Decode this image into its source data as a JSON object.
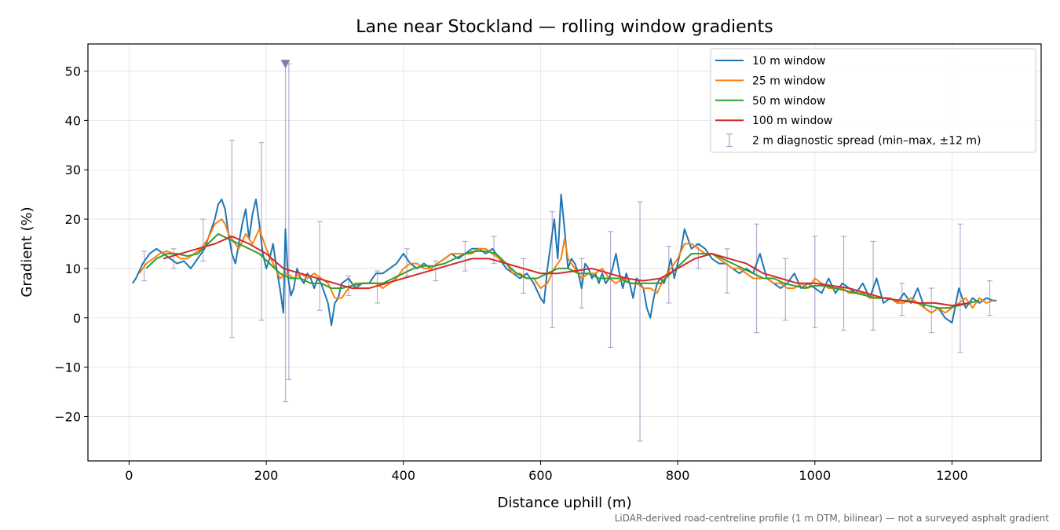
{
  "chart_data": {
    "type": "line",
    "title": "Lane near Stockland — rolling window gradients",
    "xlabel": "Distance uphill (m)",
    "ylabel": "Gradient (%)",
    "xlim": [
      -60,
      1330
    ],
    "ylim": [
      -29,
      55.5
    ],
    "xticks": [
      0,
      200,
      400,
      600,
      800,
      1000,
      1200
    ],
    "yticks": [
      -20,
      -10,
      0,
      10,
      20,
      30,
      40,
      50
    ],
    "xtick_labels": [
      "0",
      "200",
      "400",
      "600",
      "800",
      "1000",
      "1200"
    ],
    "ytick_labels": [
      "−20",
      "−10",
      "0",
      "10",
      "20",
      "30",
      "40",
      "50"
    ],
    "grid": true,
    "legend_position": "top-right",
    "footnote": "LiDAR-derived road-centreline profile (1 m DTM, bilinear) — not a surveyed asphalt gradient",
    "series": [
      {
        "name": "10 m window",
        "color": "#1f77b4",
        "x": [
          5,
          10,
          20,
          30,
          40,
          50,
          60,
          70,
          80,
          90,
          100,
          110,
          120,
          125,
          130,
          135,
          140,
          145,
          150,
          155,
          160,
          165,
          170,
          175,
          180,
          185,
          190,
          195,
          200,
          205,
          210,
          215,
          220,
          225,
          228,
          232,
          236,
          240,
          245,
          250,
          255,
          260,
          265,
          270,
          275,
          280,
          285,
          290,
          295,
          300,
          305,
          310,
          320,
          330,
          340,
          350,
          360,
          370,
          380,
          390,
          400,
          410,
          420,
          430,
          440,
          450,
          460,
          470,
          480,
          490,
          500,
          510,
          520,
          530,
          540,
          550,
          560,
          570,
          580,
          590,
          600,
          605,
          610,
          615,
          620,
          625,
          630,
          635,
          640,
          645,
          650,
          655,
          660,
          665,
          670,
          675,
          680,
          685,
          690,
          695,
          700,
          705,
          710,
          715,
          720,
          725,
          730,
          735,
          740,
          745,
          750,
          755,
          760,
          765,
          770,
          775,
          780,
          785,
          790,
          795,
          800,
          805,
          810,
          820,
          830,
          840,
          850,
          860,
          870,
          880,
          890,
          900,
          910,
          920,
          930,
          940,
          950,
          960,
          970,
          980,
          990,
          1000,
          1010,
          1020,
          1030,
          1040,
          1050,
          1060,
          1070,
          1080,
          1090,
          1100,
          1110,
          1120,
          1130,
          1140,
          1150,
          1160,
          1170,
          1180,
          1190,
          1200,
          1210,
          1220,
          1230,
          1240,
          1250,
          1260,
          1265
        ],
        "y": [
          7,
          8,
          11,
          13,
          14,
          13,
          12,
          11,
          11.5,
          10,
          12,
          14,
          18,
          20,
          23,
          24,
          22,
          17,
          13,
          11,
          15,
          19,
          22,
          16,
          21,
          24,
          19,
          13,
          10,
          12,
          15,
          10,
          6,
          1,
          18,
          8,
          4.5,
          6,
          10,
          8,
          7,
          9,
          8,
          6,
          8,
          7,
          5,
          3,
          -1.5,
          3,
          4,
          7,
          8,
          6,
          7,
          7,
          9,
          9,
          10,
          11,
          13,
          11,
          10,
          11,
          10,
          11,
          12,
          13,
          12,
          13,
          14,
          14,
          13,
          14,
          12,
          10,
          9,
          8,
          9,
          7,
          4,
          3,
          10,
          15,
          20,
          12,
          25,
          18,
          10,
          12,
          11,
          9,
          6,
          11,
          10,
          8,
          9,
          7,
          9,
          7,
          8,
          10,
          13,
          9,
          6,
          9,
          7,
          4,
          8,
          7,
          6,
          2,
          0,
          4,
          7,
          8,
          7,
          9,
          12,
          8,
          11,
          14,
          18,
          14,
          15,
          14,
          12,
          11,
          11,
          10,
          9,
          10,
          9,
          13,
          8,
          7,
          6,
          7,
          9,
          6,
          7,
          6,
          5,
          8,
          5,
          7,
          6,
          5,
          7,
          4,
          8,
          3,
          4,
          3,
          5,
          3,
          6,
          2,
          1,
          2,
          0,
          -1,
          6,
          2,
          4,
          3,
          4,
          3.5,
          3.5
        ]
      },
      {
        "name": "25 m window",
        "color": "#ff7f0e",
        "x": [
          15,
          25,
          35,
          45,
          55,
          65,
          75,
          85,
          95,
          105,
          115,
          125,
          135,
          140,
          145,
          150,
          160,
          170,
          180,
          190,
          200,
          210,
          220,
          230,
          240,
          250,
          260,
          270,
          280,
          290,
          300,
          310,
          320,
          330,
          340,
          350,
          360,
          370,
          380,
          390,
          400,
          410,
          420,
          430,
          440,
          450,
          460,
          470,
          480,
          490,
          500,
          510,
          520,
          530,
          540,
          550,
          560,
          570,
          580,
          590,
          600,
          610,
          620,
          630,
          635,
          640,
          650,
          660,
          670,
          680,
          690,
          700,
          710,
          720,
          730,
          740,
          750,
          760,
          770,
          780,
          790,
          800,
          810,
          820,
          830,
          840,
          850,
          860,
          870,
          880,
          890,
          900,
          910,
          920,
          930,
          940,
          950,
          960,
          970,
          980,
          990,
          1000,
          1010,
          1020,
          1030,
          1040,
          1050,
          1060,
          1070,
          1080,
          1090,
          1100,
          1110,
          1120,
          1130,
          1140,
          1150,
          1160,
          1170,
          1180,
          1190,
          1200,
          1210,
          1220,
          1230,
          1240,
          1250,
          1260
        ],
        "y": [
          9,
          11,
          12,
          13,
          13.5,
          13,
          12,
          12,
          13,
          14,
          16,
          19,
          20,
          19,
          17,
          16,
          14,
          17,
          15,
          18,
          14,
          11,
          8,
          9,
          8,
          9,
          8,
          9,
          8,
          7,
          4,
          4,
          6,
          7,
          7,
          7,
          7,
          6,
          7,
          8,
          10,
          11,
          11,
          10,
          10,
          11,
          12,
          13,
          13,
          13,
          13,
          14,
          14,
          13,
          12,
          11,
          9,
          9,
          8,
          8,
          6,
          7,
          10,
          12,
          16,
          12,
          10,
          8,
          9,
          9,
          10,
          8,
          7,
          8,
          7,
          7,
          6,
          6,
          5,
          8,
          10,
          12,
          15,
          15,
          14,
          13,
          13,
          12,
          11,
          10,
          10,
          9,
          8,
          8,
          8,
          7,
          7,
          6,
          6,
          7,
          6,
          8,
          7,
          6,
          6,
          6,
          5,
          5,
          5,
          4,
          4,
          4,
          4,
          3,
          3,
          4,
          3,
          2,
          1,
          2,
          1,
          2,
          3,
          4,
          2,
          4,
          3,
          3.5
        ]
      },
      {
        "name": "50 m window",
        "color": "#2ca02c",
        "x": [
          25,
          40,
          55,
          70,
          85,
          100,
          115,
          130,
          145,
          160,
          175,
          190,
          205,
          220,
          235,
          250,
          265,
          280,
          295,
          310,
          325,
          340,
          355,
          370,
          385,
          400,
          415,
          430,
          445,
          460,
          475,
          490,
          505,
          520,
          535,
          550,
          565,
          580,
          595,
          610,
          625,
          640,
          655,
          670,
          685,
          700,
          715,
          730,
          745,
          760,
          775,
          790,
          805,
          820,
          835,
          850,
          865,
          880,
          895,
          910,
          925,
          940,
          955,
          970,
          985,
          1000,
          1015,
          1030,
          1045,
          1060,
          1075,
          1090,
          1105,
          1120,
          1135,
          1150,
          1165,
          1180,
          1195,
          1210,
          1225,
          1240
        ],
        "y": [
          10,
          12,
          13,
          13,
          12.5,
          13,
          15,
          17,
          16,
          15,
          14,
          13,
          11,
          9,
          8,
          8,
          7,
          7,
          6,
          6,
          6.5,
          7,
          7,
          7,
          8,
          9,
          10,
          10.5,
          10.5,
          11,
          12,
          13,
          13.5,
          13.5,
          13,
          11,
          9,
          8,
          8,
          9,
          10,
          10,
          9,
          9,
          8,
          8,
          8,
          7,
          7,
          7,
          7,
          9,
          11,
          13,
          13,
          13,
          12,
          11,
          10,
          9,
          8,
          8,
          7,
          6.5,
          6,
          6.5,
          6.5,
          6,
          5.5,
          5,
          4.5,
          4,
          4,
          3.5,
          3.5,
          3,
          2.5,
          2,
          2,
          2.5,
          3,
          3.5
        ]
      },
      {
        "name": "100 m window",
        "color": "#d62728",
        "x": [
          50,
          75,
          100,
          125,
          150,
          175,
          200,
          225,
          250,
          275,
          300,
          325,
          350,
          375,
          400,
          425,
          450,
          475,
          500,
          525,
          550,
          575,
          600,
          625,
          650,
          675,
          700,
          725,
          750,
          775,
          800,
          825,
          850,
          875,
          900,
          925,
          950,
          975,
          1000,
          1025,
          1050,
          1075,
          1100,
          1125,
          1150,
          1175,
          1200,
          1225
        ],
        "y": [
          12,
          13,
          14,
          15,
          16.5,
          15,
          13,
          10,
          9,
          8,
          7,
          6,
          6,
          7,
          8,
          9,
          10,
          11,
          12,
          12,
          11,
          10,
          9,
          9,
          9.5,
          10,
          9,
          8,
          7.5,
          8,
          10,
          12,
          13,
          12,
          11,
          9,
          8,
          7,
          7,
          6.5,
          6,
          5,
          4,
          3.5,
          3,
          3,
          2.5,
          3
        ]
      }
    ],
    "error_bars": {
      "name": "2 m diagnostic spread (min–max, ±12 m)",
      "color": "#8878b0",
      "points": [
        {
          "x": 22,
          "min": 7.5,
          "max": 13.5
        },
        {
          "x": 65,
          "min": 10,
          "max": 14
        },
        {
          "x": 108,
          "min": 11.5,
          "max": 20
        },
        {
          "x": 150,
          "min": -4,
          "max": 36
        },
        {
          "x": 193,
          "min": -0.5,
          "max": 35.5
        },
        {
          "x": 233,
          "min": -12.5,
          "max": 51.5
        },
        {
          "x": 278,
          "min": 1.5,
          "max": 19.5
        },
        {
          "x": 320,
          "min": 4.5,
          "max": 8.5
        },
        {
          "x": 362,
          "min": 3,
          "max": 9.5
        },
        {
          "x": 405,
          "min": 8.5,
          "max": 14
        },
        {
          "x": 447,
          "min": 7.5,
          "max": 11.5
        },
        {
          "x": 490,
          "min": 9.5,
          "max": 15.5
        },
        {
          "x": 532,
          "min": 11,
          "max": 16.5
        },
        {
          "x": 575,
          "min": 5,
          "max": 12
        },
        {
          "x": 617,
          "min": -2,
          "max": 21.5
        },
        {
          "x": 660,
          "min": 2,
          "max": 12
        },
        {
          "x": 702,
          "min": -6,
          "max": 17.5
        },
        {
          "x": 745,
          "min": -25,
          "max": 23.5
        },
        {
          "x": 787,
          "min": 3,
          "max": 14.5
        },
        {
          "x": 830,
          "min": 10,
          "max": 15
        },
        {
          "x": 872,
          "min": 5,
          "max": 14
        },
        {
          "x": 915,
          "min": -3,
          "max": 19
        },
        {
          "x": 957,
          "min": -0.5,
          "max": 12
        },
        {
          "x": 1000,
          "min": -2,
          "max": 16.5
        },
        {
          "x": 1042,
          "min": -2.5,
          "max": 16.5
        },
        {
          "x": 1085,
          "min": -2.5,
          "max": 15.5
        },
        {
          "x": 1127,
          "min": 0.5,
          "max": 7
        },
        {
          "x": 1170,
          "min": -3,
          "max": 6
        },
        {
          "x": 1212,
          "min": -7,
          "max": 19
        },
        {
          "x": 1255,
          "min": 0.5,
          "max": 7.5
        }
      ]
    },
    "marker": {
      "x": 228,
      "y": 51.5,
      "shape": "triangle-down",
      "color": "#8878b0"
    },
    "extra_bar": {
      "x": 228,
      "min": -17,
      "max": 51.5
    }
  }
}
